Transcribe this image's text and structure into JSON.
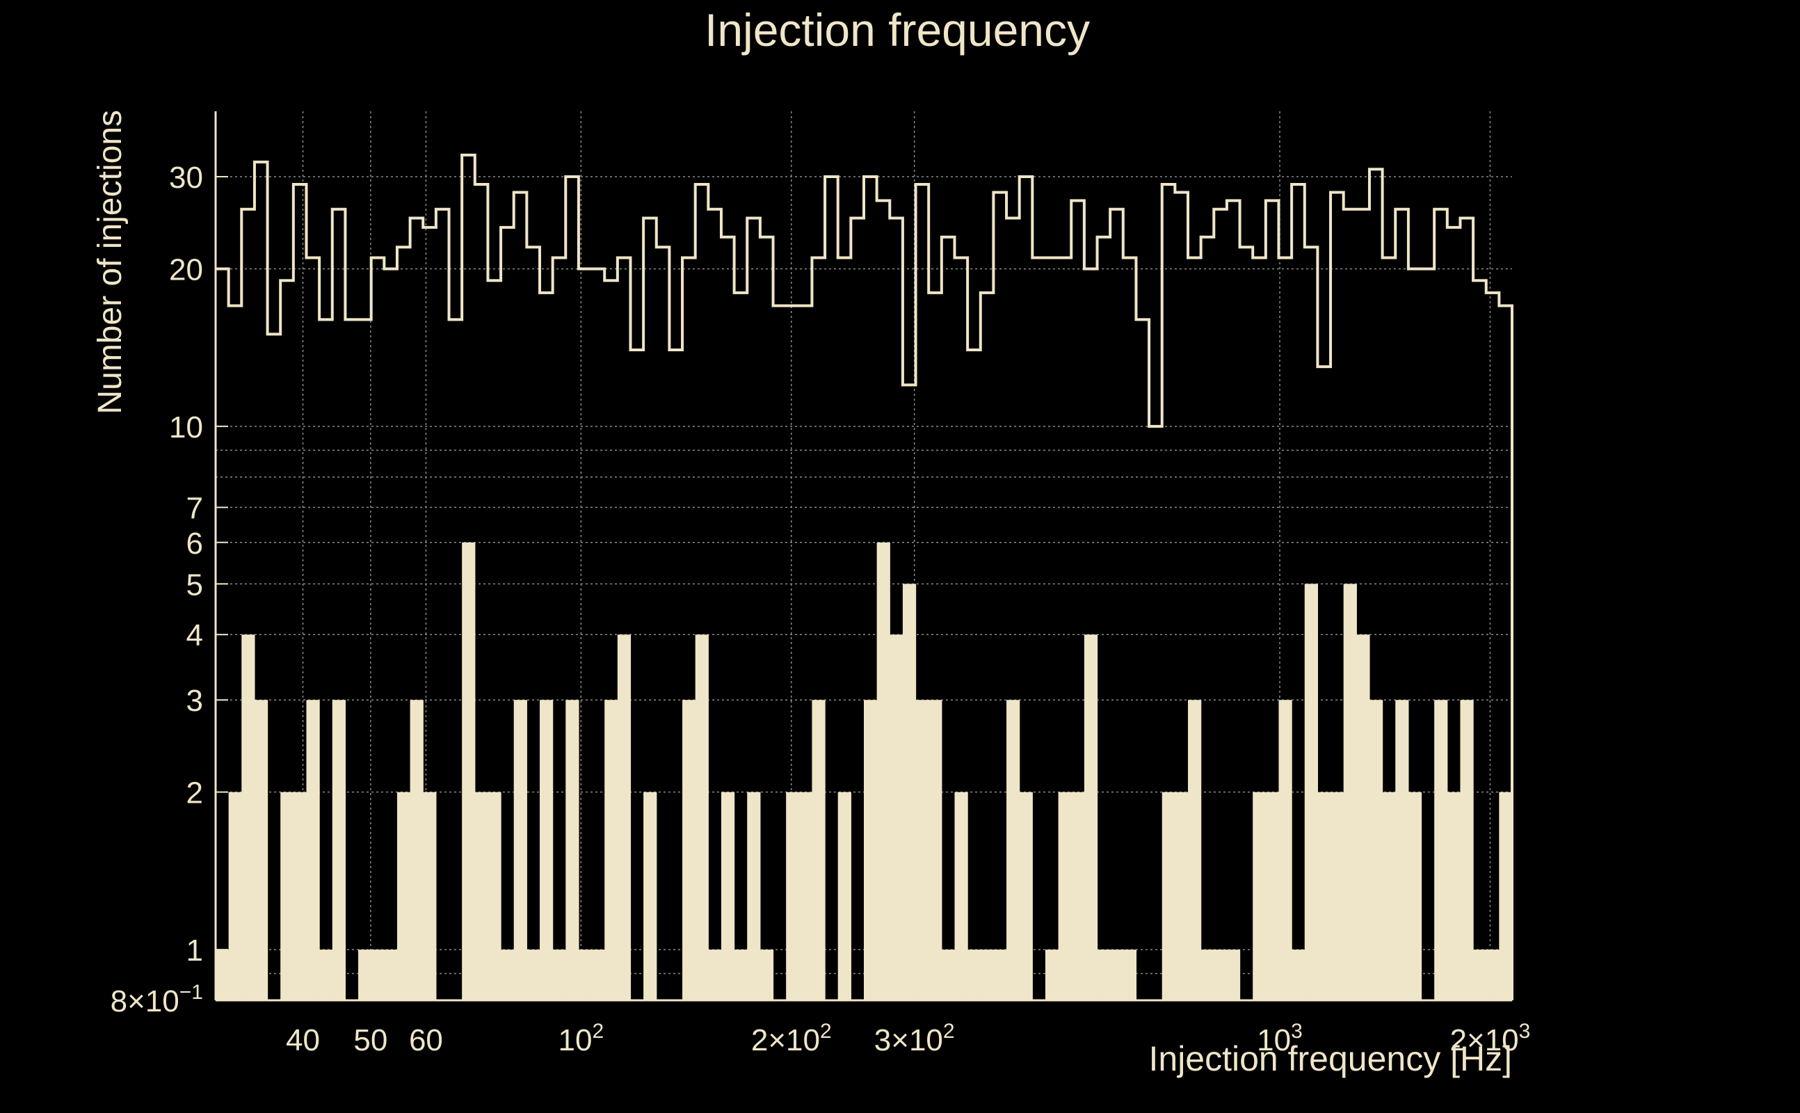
{
  "chart_data": {
    "type": "histogram",
    "title": "Injection frequency",
    "xlabel": "Injection frequency [Hz]",
    "ylabel": "Number of injections",
    "x_scale": "log",
    "y_scale": "log",
    "xlim": [
      30,
      2150
    ],
    "ylim": [
      0.8,
      40
    ],
    "grid": true,
    "colors": {
      "background": "#000000",
      "foreground": "#efe5c8",
      "grid": "#8c8c8c"
    },
    "x_ticks": [
      {
        "value": 40,
        "label": "40"
      },
      {
        "value": 50,
        "label": "50"
      },
      {
        "value": 60,
        "label": "60"
      },
      {
        "value": 100,
        "label": "10",
        "sup": "2"
      },
      {
        "value": 200,
        "label": "2×10",
        "sup": "2"
      },
      {
        "value": 300,
        "label": "3×10",
        "sup": "2"
      },
      {
        "value": 1000,
        "label": "10",
        "sup": "3"
      },
      {
        "value": 2000,
        "label": "2×10",
        "sup": "3"
      }
    ],
    "y_ticks": [
      {
        "value": 0.8,
        "label": "8×10",
        "sup": "−1"
      },
      {
        "value": 1,
        "label": "1"
      },
      {
        "value": 2,
        "label": "2"
      },
      {
        "value": 3,
        "label": "3"
      },
      {
        "value": 4,
        "label": "4"
      },
      {
        "value": 5,
        "label": "5"
      },
      {
        "value": 6,
        "label": "6"
      },
      {
        "value": 7,
        "label": "7"
      },
      {
        "value": 10,
        "label": "10"
      },
      {
        "value": 20,
        "label": "20"
      },
      {
        "value": 30,
        "label": "30"
      }
    ],
    "bin_range": [
      30,
      2150
    ],
    "series": [
      {
        "style": "outline",
        "values": [
          20,
          17,
          26,
          32,
          15,
          19,
          29,
          21,
          16,
          26,
          16,
          16,
          21,
          20,
          22,
          25,
          24,
          26,
          16,
          33,
          29,
          19,
          24,
          28,
          22,
          18,
          21,
          30,
          20,
          20,
          19,
          21,
          14,
          25,
          22,
          14,
          21,
          29,
          26,
          23,
          18,
          25,
          23,
          17,
          17,
          17,
          21,
          30,
          21,
          25,
          30,
          27,
          25,
          12,
          29,
          18,
          23,
          21,
          14,
          18,
          28,
          25,
          30,
          21,
          21,
          21,
          27,
          20,
          23,
          26,
          21,
          16,
          10,
          29,
          28,
          21,
          23,
          26,
          27,
          22,
          21,
          27,
          21,
          29,
          22,
          13,
          28,
          26,
          26,
          31,
          21,
          26,
          20,
          20,
          26,
          24,
          25,
          19,
          18,
          17
        ]
      },
      {
        "style": "filled",
        "values": [
          1,
          2,
          4,
          3,
          0,
          2,
          2,
          3,
          1,
          3,
          0,
          1,
          1,
          1,
          2,
          3,
          2,
          0,
          0,
          6,
          2,
          2,
          1,
          3,
          1,
          3,
          1,
          3,
          1,
          1,
          3,
          4,
          0,
          2,
          0,
          0,
          3,
          4,
          1,
          2,
          1,
          2,
          1,
          0,
          2,
          2,
          3,
          0,
          2,
          0,
          3,
          6,
          4,
          5,
          3,
          3,
          1,
          2,
          1,
          1,
          1,
          3,
          2,
          0,
          1,
          2,
          2,
          4,
          1,
          1,
          1,
          0,
          0,
          2,
          2,
          3,
          1,
          1,
          1,
          0,
          2,
          2,
          3,
          1,
          5,
          2,
          2,
          5,
          4,
          3,
          2,
          3,
          2,
          0,
          3,
          2,
          3,
          1,
          1,
          2
        ]
      }
    ]
  }
}
